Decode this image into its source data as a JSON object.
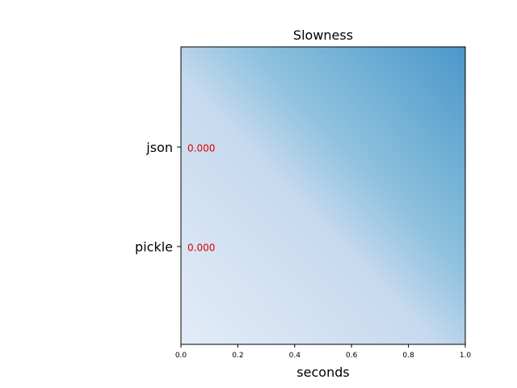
{
  "chart_data": {
    "type": "bar",
    "orientation": "horizontal",
    "title": "Slowness",
    "xlabel": "seconds",
    "ylabel": "",
    "xlim": [
      0,
      1
    ],
    "x_ticks": [
      "0.0",
      "0.2",
      "0.4",
      "0.6",
      "0.8",
      "1.0"
    ],
    "categories": [
      "json",
      "pickle"
    ],
    "values": [
      0.0,
      0.0
    ],
    "data_labels": [
      "0.000",
      "0.000"
    ],
    "grid": false,
    "legend": "none",
    "background": "gradient",
    "colors": {
      "gradient_top_right": "#4a97c9",
      "gradient_mid": "#8fc2de",
      "gradient_bottom_left": "#e3ecf8",
      "data_label": "#e00000",
      "axis": "#000000"
    }
  }
}
